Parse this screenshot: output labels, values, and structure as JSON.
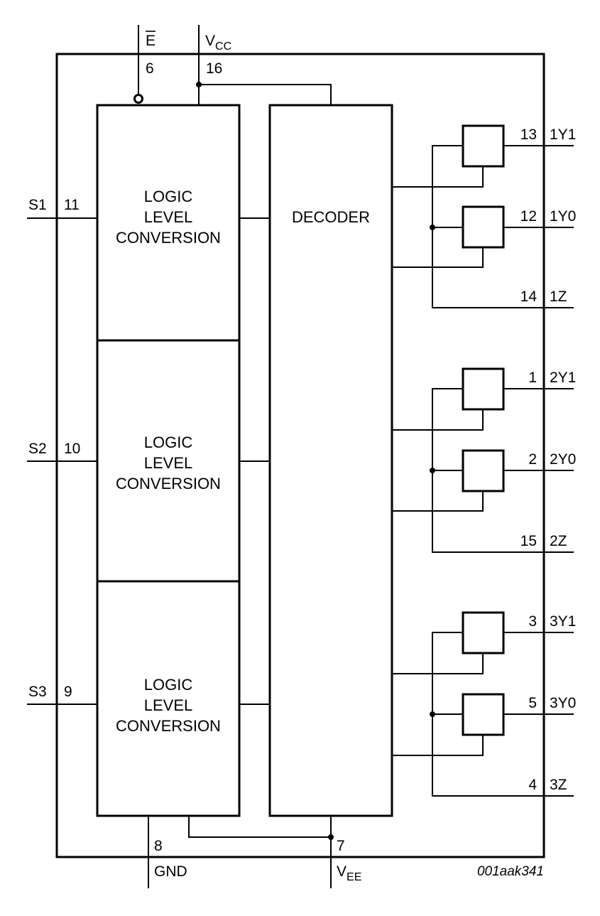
{
  "diagram": {
    "enable_pin": {
      "name": "E",
      "number": "6"
    },
    "vcc_pin": {
      "name": "V",
      "sub": "CC",
      "number": "16"
    },
    "gnd_pin": {
      "name": "GND",
      "number": "8"
    },
    "vee_pin": {
      "name": "V",
      "sub": "EE",
      "number": "7"
    },
    "select_pins": [
      {
        "name": "S1",
        "number": "11"
      },
      {
        "name": "S2",
        "number": "10"
      },
      {
        "name": "S3",
        "number": "9"
      }
    ],
    "logic_blocks": [
      {
        "line1": "LOGIC",
        "line2": "LEVEL",
        "line3": "CONVERSION"
      },
      {
        "line1": "LOGIC",
        "line2": "LEVEL",
        "line3": "CONVERSION"
      },
      {
        "line1": "LOGIC",
        "line2": "LEVEL",
        "line3": "CONVERSION"
      }
    ],
    "decoder_label": "DECODER",
    "channels": [
      {
        "y1": {
          "number": "13",
          "name": "1Y1"
        },
        "y0": {
          "number": "12",
          "name": "1Y0"
        },
        "z": {
          "number": "14",
          "name": "1Z"
        }
      },
      {
        "y1": {
          "number": "1",
          "name": "2Y1"
        },
        "y0": {
          "number": "2",
          "name": "2Y0"
        },
        "z": {
          "number": "15",
          "name": "2Z"
        }
      },
      {
        "y1": {
          "number": "3",
          "name": "3Y1"
        },
        "y0": {
          "number": "5",
          "name": "3Y0"
        },
        "z": {
          "number": "4",
          "name": "3Z"
        }
      }
    ],
    "figure_code": "001aak341"
  }
}
